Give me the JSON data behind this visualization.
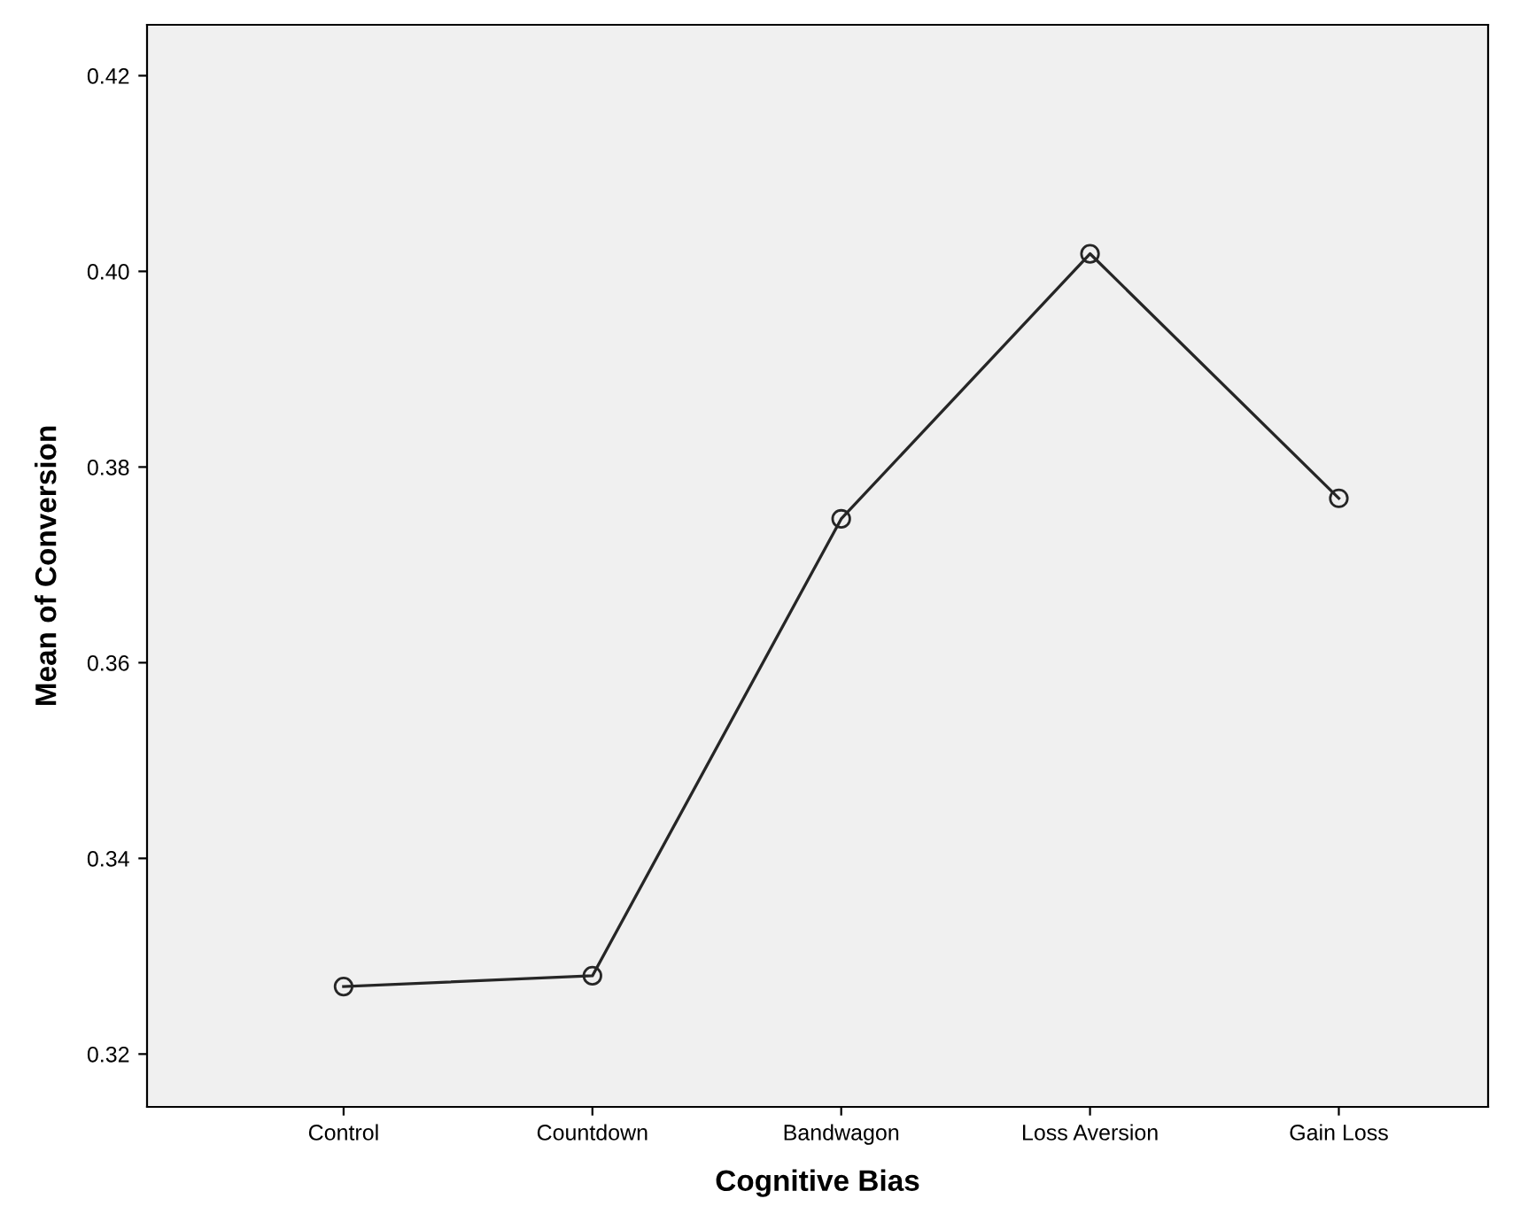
{
  "chart_data": {
    "type": "line",
    "xlabel": "Cognitive Bias",
    "ylabel": "Mean of Conversion",
    "categories": [
      "Control",
      "Countdown",
      "Bandwagon",
      "Loss Aversion",
      "Gain Loss"
    ],
    "series": [
      {
        "color": "#262626",
        "values": [
          0.3269,
          0.328,
          0.3747,
          0.4018,
          0.3768
        ]
      }
    ],
    "ylim": [
      0.3146,
      0.4252
    ],
    "yticks": [
      {
        "value": 0.32,
        "label": "0.32"
      },
      {
        "value": 0.34,
        "label": "0.34"
      },
      {
        "value": 0.36,
        "label": "0.36"
      },
      {
        "value": 0.38,
        "label": "0.38"
      },
      {
        "value": 0.4,
        "label": "0.40"
      },
      {
        "value": 0.42,
        "label": "0.42"
      }
    ],
    "marker": "circle",
    "line_style": "solid",
    "grid": false,
    "legend": false
  }
}
